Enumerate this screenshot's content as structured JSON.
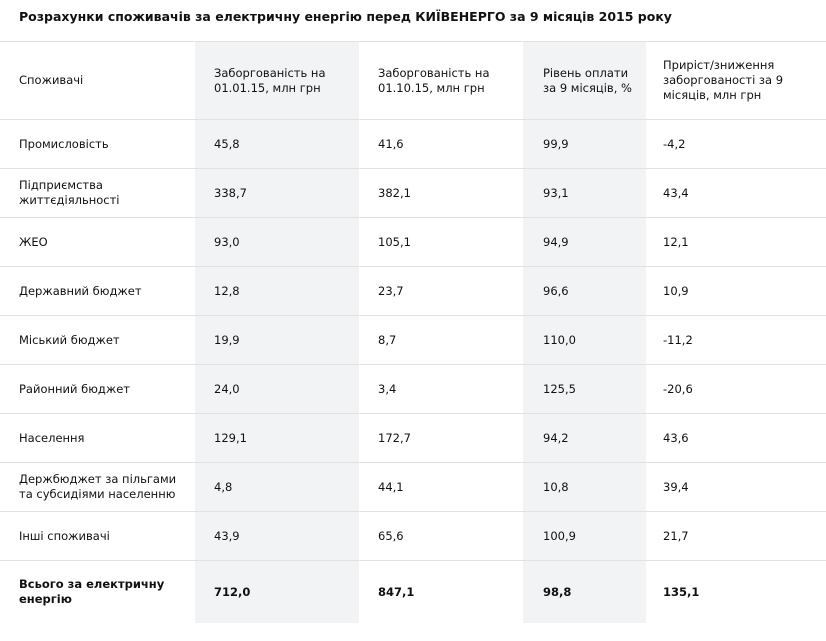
{
  "title": "Розрахунки споживачів за електричну енергію перед КИЇВЕНЕРГО за 9 місяців 2015 року",
  "headers": [
    "Споживачі",
    "Заборгованість на 01.01.15, млн грн",
    "Заборгованість на 01.10.15, млн грн",
    "Рівень оплати за 9 місяців, %",
    "Приріст/зниження заборгованості за 9 місяців, млн грн"
  ],
  "rows": [
    [
      "Промисловість",
      "45,8",
      "41,6",
      "99,9",
      "-4,2"
    ],
    [
      "Підприємства життєдіяльності",
      "338,7",
      "382,1",
      "93,1",
      "43,4"
    ],
    [
      "ЖЕО",
      "93,0",
      "105,1",
      "94,9",
      "12,1"
    ],
    [
      "Державний бюджет",
      "12,8",
      "23,7",
      "96,6",
      "10,9"
    ],
    [
      "Міський бюджет",
      "19,9",
      "8,7",
      "110,0",
      "-11,2"
    ],
    [
      "Районний бюджет",
      "24,0",
      "3,4",
      "125,5",
      "-20,6"
    ],
    [
      "Населення",
      "129,1",
      "172,7",
      "94,2",
      "43,6"
    ],
    [
      "Держбюджет за пільгами та субсидіями населенню",
      "4,8",
      "44,1",
      "10,8",
      "39,4"
    ],
    [
      "Інші споживачі",
      "43,9",
      "65,6",
      "100,9",
      "21,7"
    ]
  ],
  "total": [
    "Всього за електричну енергію",
    "712,0",
    "847,1",
    "98,8",
    "135,1"
  ],
  "colors": {
    "shade": "#f2f3f5",
    "border": "#e2e2e2",
    "text": "#111111"
  }
}
